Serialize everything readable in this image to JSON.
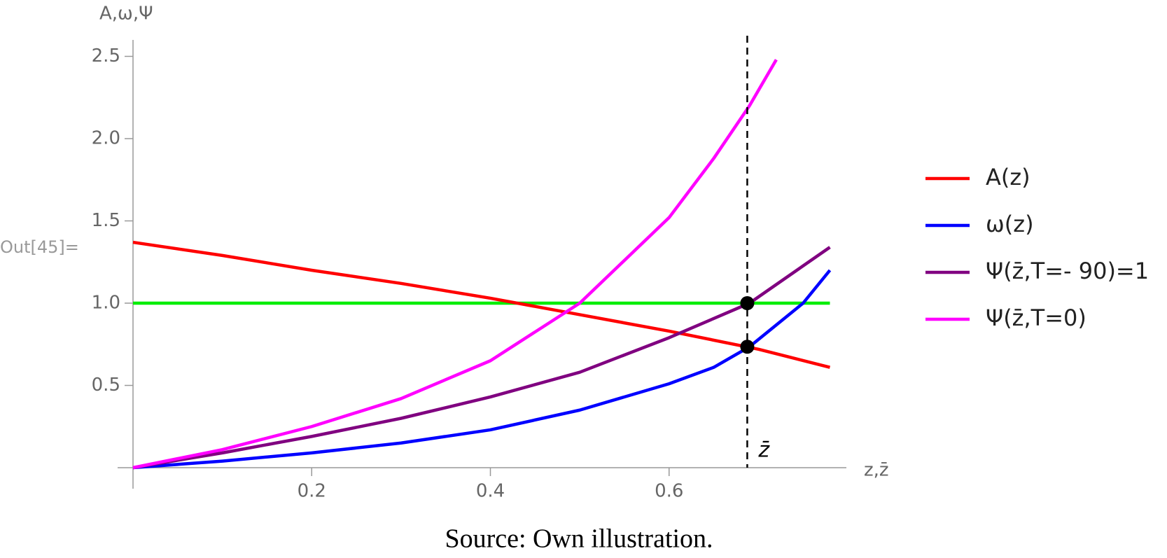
{
  "chart_data": {
    "type": "line",
    "prompt_label": "Out[45]=",
    "xlabel": "z,z̄",
    "ylabel": "A,ω,Ψ",
    "caption": "Source:  Own illustration.",
    "xlim": [
      0,
      0.8
    ],
    "ylim": [
      0,
      2.6
    ],
    "xticks": [
      0.2,
      0.4,
      0.6
    ],
    "yticks": [
      0.5,
      {
        "value": 1,
        "label": "1.0"
      },
      1.5,
      {
        "value": 2,
        "label": "2.0"
      },
      2.5
    ],
    "legend": "right",
    "series": [
      {
        "name": "A(z)",
        "color": "#ff0000",
        "x": [
          0,
          0.1,
          0.2,
          0.3,
          0.4,
          0.5,
          0.6,
          0.7,
          0.78
        ],
        "values": [
          1.37,
          1.29,
          1.2,
          1.12,
          1.03,
          0.93,
          0.83,
          0.72,
          0.61
        ]
      },
      {
        "name": "ω(z)",
        "color": "#0000ff",
        "x": [
          0,
          0.1,
          0.2,
          0.3,
          0.4,
          0.5,
          0.6,
          0.65,
          0.69,
          0.75,
          0.78
        ],
        "values": [
          0,
          0.04,
          0.09,
          0.15,
          0.23,
          0.35,
          0.51,
          0.61,
          0.735,
          1.0,
          1.2
        ]
      },
      {
        "name": "Ψ(z̄,T=- 90)=1",
        "color": "#800080",
        "x": [
          0,
          0.1,
          0.2,
          0.3,
          0.4,
          0.5,
          0.6,
          0.69,
          0.78
        ],
        "values": [
          0,
          0.09,
          0.19,
          0.3,
          0.43,
          0.58,
          0.79,
          1.0,
          1.34
        ]
      },
      {
        "name": "Ψ(z̄,T=0)",
        "color": "#ff00ff",
        "x": [
          0,
          0.1,
          0.2,
          0.3,
          0.4,
          0.5,
          0.6,
          0.65,
          0.69,
          0.72
        ],
        "values": [
          0,
          0.11,
          0.25,
          0.42,
          0.65,
          1.0,
          1.52,
          1.88,
          2.2,
          2.48
        ]
      },
      {
        "color": "#00ee00",
        "x": [
          0,
          0.78
        ],
        "values": [
          1,
          1
        ]
      }
    ],
    "vline": {
      "x": 0.6875,
      "label": "z̄"
    },
    "points": {
      "x": [
        0.6875,
        0.6875
      ],
      "values": [
        1.0,
        0.735
      ]
    }
  }
}
